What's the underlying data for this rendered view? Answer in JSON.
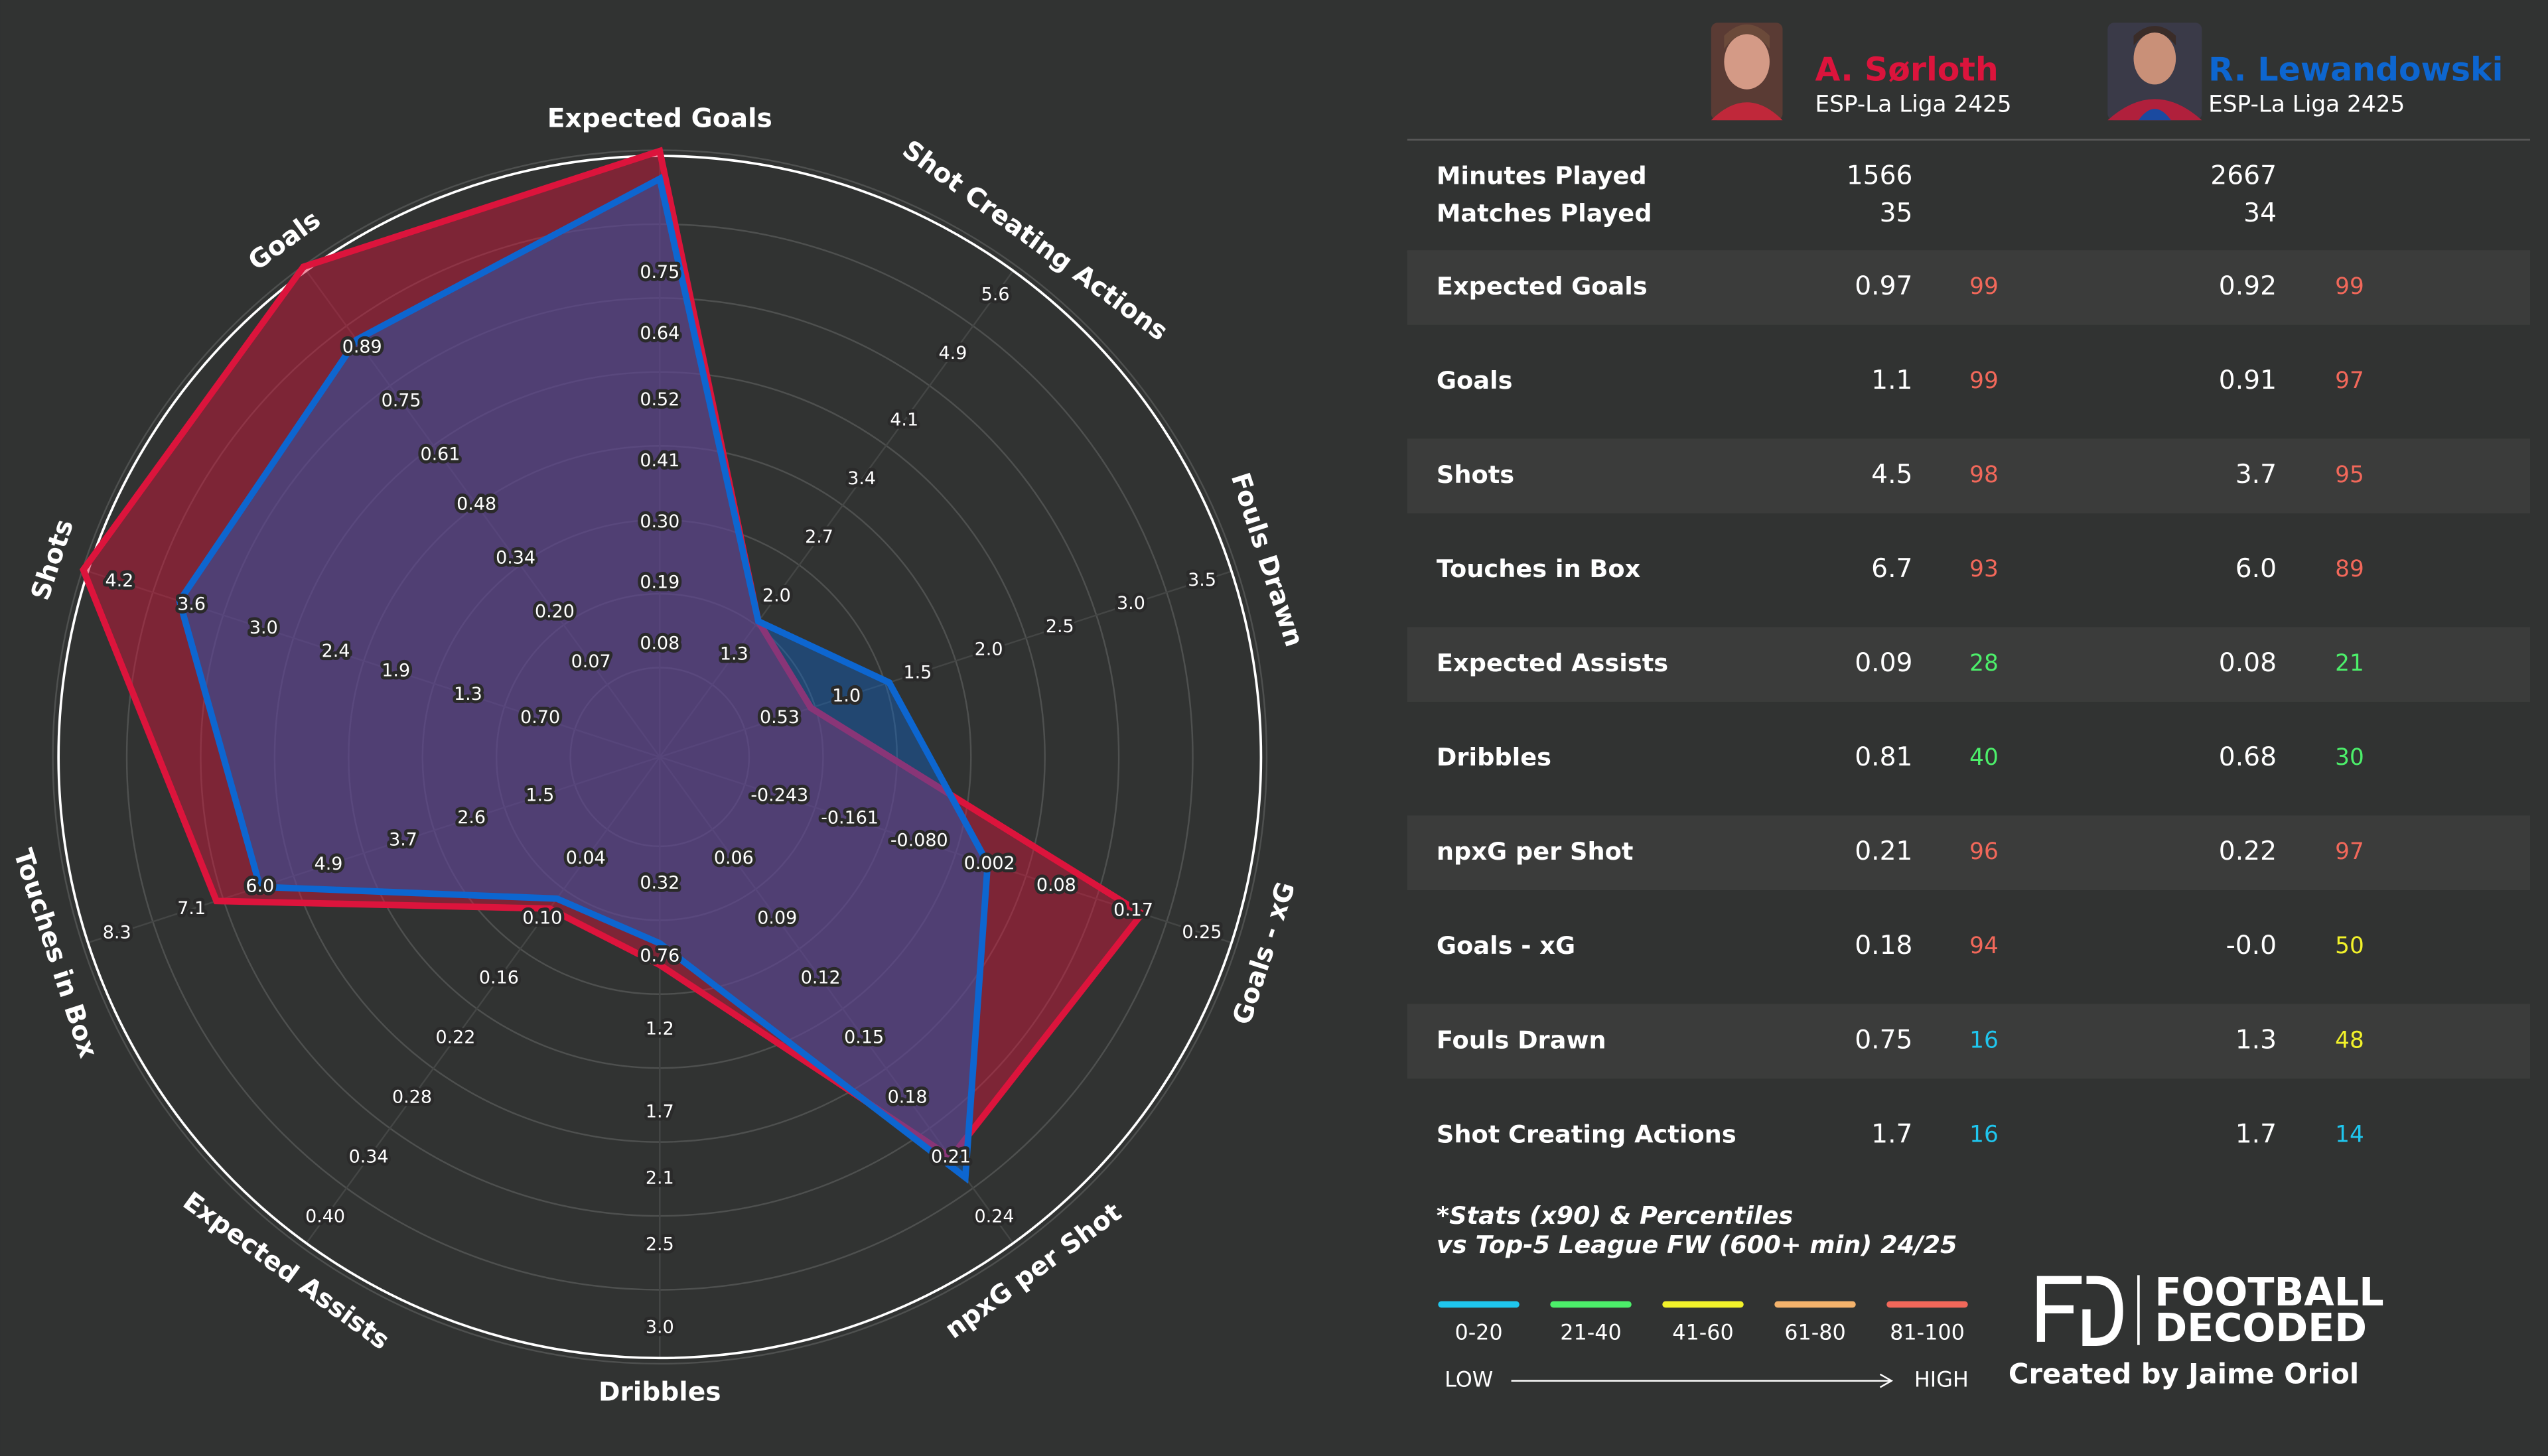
{
  "chart_data": {
    "type": "radar",
    "axes": [
      {
        "name": "Expected Goals",
        "range": [
          -0.03,
          0.97
        ],
        "ticks": [
          0.08,
          0.19,
          {
            "value": 0.3,
            "label": "0.30"
          },
          0.41,
          0.52,
          0.64,
          0.75
        ]
      },
      {
        "name": "Shot Creating Actions",
        "range": [
          0.58,
          5.94
        ],
        "ticks": [
          1.3,
          {
            "value": 2.0,
            "label": "2.0"
          },
          2.7,
          3.4,
          4.1,
          4.9,
          5.6
        ]
      },
      {
        "name": "Fouls Drawn",
        "range": [
          0.035,
          3.74
        ],
        "ticks": [
          0.53,
          {
            "value": 1.0,
            "label": "1.0"
          },
          1.5,
          {
            "value": 2.0,
            "label": "2.0"
          },
          2.5,
          {
            "value": 3.0,
            "label": "3.0"
          },
          3.5
        ]
      },
      {
        "name": "Goals - xG",
        "range": [
          -0.325,
          0.29
        ],
        "ticks": [
          -0.243,
          -0.161,
          {
            "value": -0.08,
            "label": "-0.080"
          },
          0.002,
          0.08,
          0.17,
          0.25
        ]
      },
      {
        "name": "npxG per Shot",
        "range": [
          0.03,
          0.255
        ],
        "ticks": [
          0.06,
          0.09,
          0.12,
          0.15,
          0.18,
          0.21,
          0.24
        ]
      },
      {
        "name": "Dribbles",
        "range": [
          -0.13,
          3.21
        ],
        "ticks": [
          0.32,
          0.76,
          1.2,
          1.7,
          2.1,
          2.5,
          {
            "value": 3.0,
            "label": "3.0"
          }
        ]
      },
      {
        "name": "Expected Assists",
        "range": [
          -0.02,
          0.43
        ],
        "ticks": [
          0.04,
          {
            "value": 0.1,
            "label": "0.10"
          },
          0.16,
          0.22,
          0.28,
          0.34,
          {
            "value": 0.4,
            "label": "0.40"
          }
        ]
      },
      {
        "name": "Touches in Box",
        "range": [
          0.37,
          8.84
        ],
        "ticks": [
          1.5,
          2.6,
          3.7,
          4.9,
          {
            "value": 6.0,
            "label": "6.0"
          },
          7.1,
          8.3
        ]
      },
      {
        "name": "Shots",
        "range": [
          0.117,
          4.5
        ],
        "ticks": [
          {
            "value": 0.7,
            "label": "0.70"
          },
          1.3,
          1.9,
          2.4,
          {
            "value": 3.0,
            "label": "3.0"
          },
          3.6,
          4.2
        ]
      },
      {
        "name": "Goals",
        "range": [
          -0.067,
          1.1
        ],
        "ticks": [
          0.07,
          {
            "value": 0.2,
            "label": "0.20"
          },
          0.34,
          0.48,
          0.61,
          0.75,
          0.89
        ]
      }
    ],
    "series": [
      {
        "name": "A. Sørloth",
        "league": "ESP-La Liga 2425",
        "color": "#dc143c",
        "values": [
          0.97,
          1.7,
          0.75,
          0.18,
          0.21,
          0.81,
          0.09,
          6.7,
          4.5,
          1.1
        ]
      },
      {
        "name": "R. Lewandowski",
        "league": "ESP-La Liga 2425",
        "color": "#0d66d0",
        "values": [
          0.92,
          1.7,
          1.3,
          0.0,
          0.22,
          0.68,
          0.08,
          6.0,
          3.7,
          0.91
        ]
      }
    ]
  },
  "summary": [
    {
      "label": "Minutes Played",
      "values": [
        1566,
        2667
      ]
    },
    {
      "label": "Matches Played",
      "values": [
        35,
        34
      ]
    }
  ],
  "stats": [
    {
      "label": "Expected Goals",
      "values": [
        0.97,
        0.92
      ],
      "percentiles": [
        99,
        99
      ]
    },
    {
      "label": "Goals",
      "values": [
        1.1,
        0.91
      ],
      "percentiles": [
        99,
        97
      ]
    },
    {
      "label": "Shots",
      "values": [
        4.5,
        3.7
      ],
      "percentiles": [
        98,
        95
      ]
    },
    {
      "label": "Touches in Box",
      "values": [
        6.7,
        "6.0"
      ],
      "percentiles": [
        93,
        89
      ]
    },
    {
      "label": "Expected Assists",
      "values": [
        0.09,
        0.08
      ],
      "percentiles": [
        28,
        21
      ]
    },
    {
      "label": "Dribbles",
      "values": [
        0.81,
        0.68
      ],
      "percentiles": [
        40,
        30
      ]
    },
    {
      "label": "npxG per Shot",
      "values": [
        0.21,
        0.22
      ],
      "percentiles": [
        96,
        97
      ]
    },
    {
      "label": "Goals - xG",
      "values": [
        0.18,
        "-0.0"
      ],
      "percentiles": [
        94,
        50
      ]
    },
    {
      "label": "Fouls Drawn",
      "values": [
        0.75,
        1.3
      ],
      "percentiles": [
        16,
        48
      ]
    },
    {
      "label": "Shot Creating Actions",
      "values": [
        1.7,
        1.7
      ],
      "percentiles": [
        16,
        14
      ]
    }
  ],
  "footnote": [
    "*Stats (x90) & Percentiles",
    "vs Top-5 League FW (600+ min) 24/25"
  ],
  "percentile_legend": {
    "bins": [
      {
        "label": "0-20",
        "color": "#1fc6ee"
      },
      {
        "label": "21-40",
        "color": "#4cef6a"
      },
      {
        "label": "41-60",
        "color": "#f2f22a"
      },
      {
        "label": "61-80",
        "color": "#f4b36c"
      },
      {
        "label": "81-100",
        "color": "#f2685a"
      }
    ],
    "low": "LOW",
    "high": "HIGH"
  },
  "branding": {
    "logo_lines": [
      "FOOTBALL",
      "DECODED"
    ],
    "credit": "Created by Jaime Oriol"
  }
}
